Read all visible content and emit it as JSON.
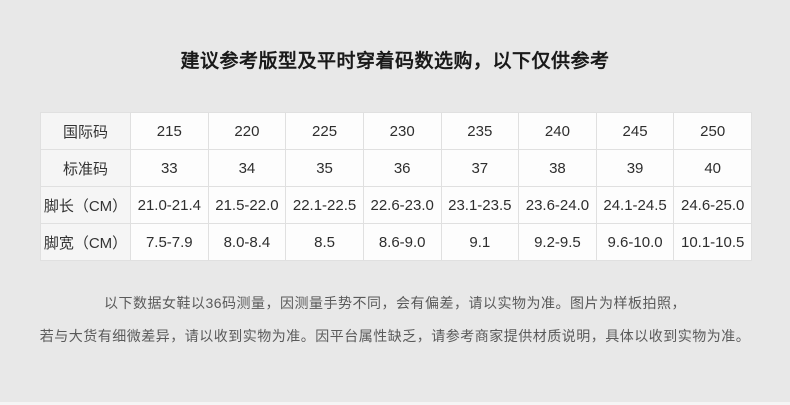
{
  "title": "建议参考版型及平时穿着码数选购，以下仅供参考",
  "size_table": {
    "rows": [
      {
        "label": "国际码",
        "values": [
          "215",
          "220",
          "225",
          "230",
          "235",
          "240",
          "245",
          "250"
        ]
      },
      {
        "label": "标准码",
        "values": [
          "33",
          "34",
          "35",
          "36",
          "37",
          "38",
          "39",
          "40"
        ]
      },
      {
        "label": "脚长（CM）",
        "values": [
          "21.0-21.4",
          "21.5-22.0",
          "22.1-22.5",
          "22.6-23.0",
          "23.1-23.5",
          "23.6-24.0",
          "24.1-24.5",
          "24.6-25.0"
        ]
      },
      {
        "label": "脚宽（CM）",
        "values": [
          "7.5-7.9",
          "8.0-8.4",
          "8.5",
          "8.6-9.0",
          "9.1",
          "9.2-9.5",
          "9.6-10.0",
          "10.1-10.5"
        ]
      }
    ]
  },
  "footnote": {
    "line1": "以下数据女鞋以36码测量，因测量手势不同，会有偏差，请以实物为准。图片为样板拍照，",
    "line2": "若与大货有细微差异，请以收到实物为准。因平台属性缺乏，请参考商家提供材质说明，具体以收到实物为准。"
  },
  "colors": {
    "page_background": "#e8e8e8",
    "cell_background": "#fdfdfd",
    "label_cell_background": "#f5f5f5",
    "table_border": "#e0e0e0",
    "title_text": "#1a1a1a",
    "table_text": "#2e2e2e",
    "footnote_text": "#5a5a5a"
  }
}
